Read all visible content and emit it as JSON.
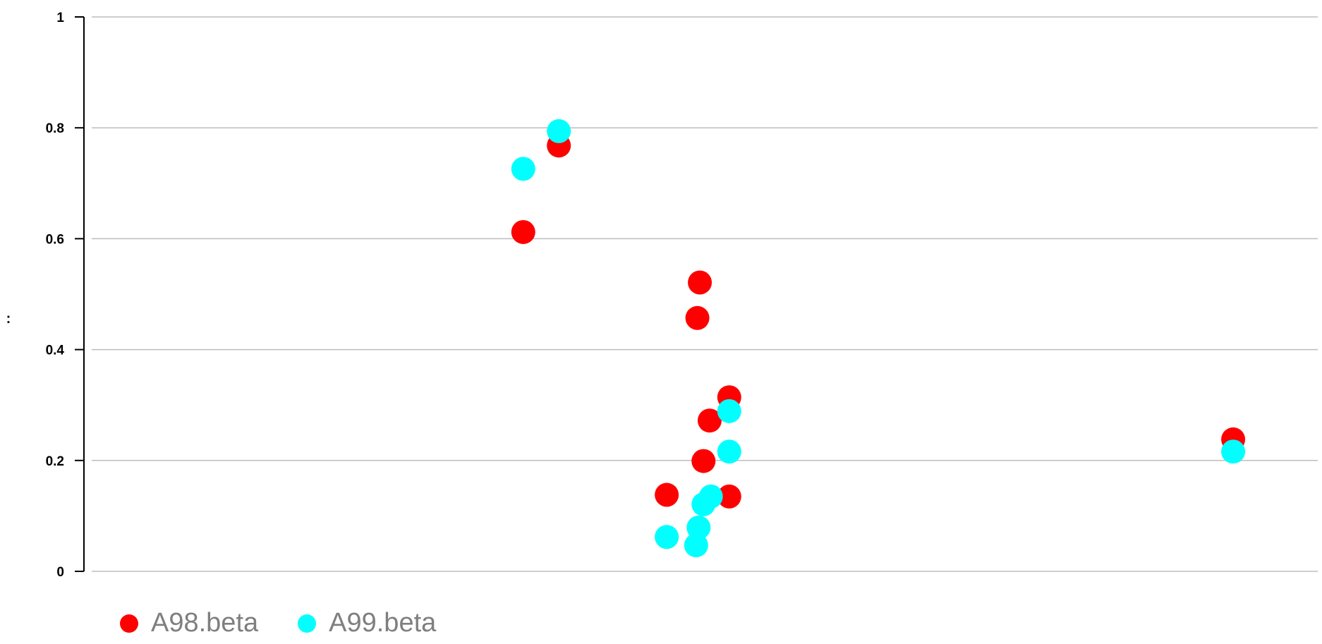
{
  "chart_data": {
    "type": "scatter",
    "title": "",
    "xlabel": "",
    "ylabel": ":",
    "ylim": [
      0,
      1
    ],
    "yticks": [
      "0",
      "0.2",
      "0.4",
      "0.6",
      "0.8",
      "1"
    ],
    "grid": true,
    "legend_position": "bottom-left",
    "series": [
      {
        "name": "A98.beta",
        "color": "#ff0000",
        "points": [
          {
            "x": 0.352,
            "y": 0.612
          },
          {
            "x": 0.381,
            "y": 0.768
          },
          {
            "x": 0.469,
            "y": 0.138
          },
          {
            "x": 0.494,
            "y": 0.457
          },
          {
            "x": 0.496,
            "y": 0.521
          },
          {
            "x": 0.499,
            "y": 0.199
          },
          {
            "x": 0.504,
            "y": 0.272
          },
          {
            "x": 0.52,
            "y": 0.314
          },
          {
            "x": 0.52,
            "y": 0.135
          },
          {
            "x": 0.931,
            "y": 0.238
          }
        ]
      },
      {
        "name": "A99.beta",
        "color": "#00ffff",
        "points": [
          {
            "x": 0.352,
            "y": 0.726
          },
          {
            "x": 0.381,
            "y": 0.794
          },
          {
            "x": 0.469,
            "y": 0.062
          },
          {
            "x": 0.493,
            "y": 0.047
          },
          {
            "x": 0.495,
            "y": 0.079
          },
          {
            "x": 0.499,
            "y": 0.121
          },
          {
            "x": 0.505,
            "y": 0.135
          },
          {
            "x": 0.52,
            "y": 0.289
          },
          {
            "x": 0.52,
            "y": 0.216
          },
          {
            "x": 0.931,
            "y": 0.216
          }
        ]
      }
    ]
  }
}
